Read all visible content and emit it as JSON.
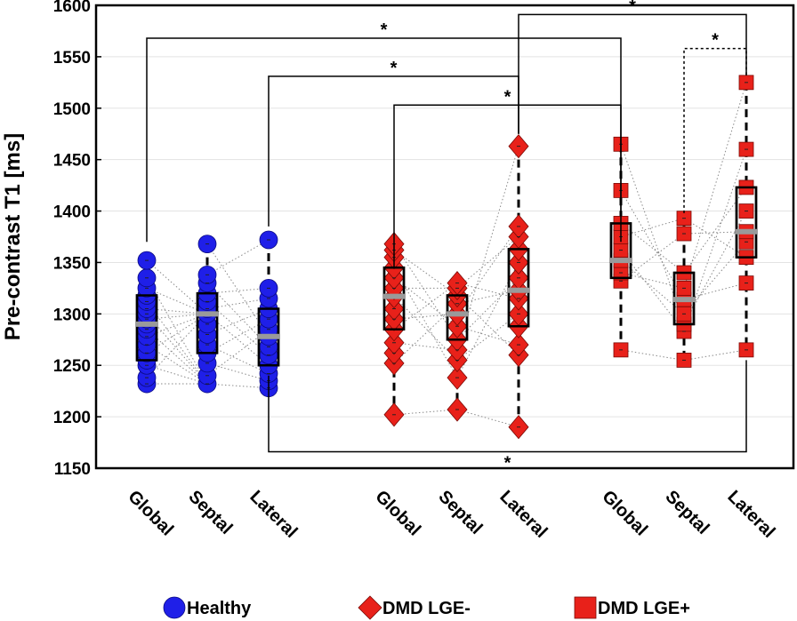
{
  "chart_data": {
    "type": "box-scatter",
    "ylabel": "Pre-contrast T1 [ms]",
    "ylim": [
      1150,
      1600
    ],
    "yticks": [
      1150,
      1200,
      1250,
      1300,
      1350,
      1400,
      1450,
      1500,
      1550,
      1600
    ],
    "grid": "horizontal",
    "colors": {
      "healthy": "#1f1fe8",
      "dmd": "#e8211a",
      "median": "#9a9a9a"
    },
    "groups": [
      {
        "name": "Healthy",
        "marker": "circle",
        "color": "#1f1fe8",
        "regions": [
          {
            "label": "Global",
            "q1": 1255,
            "median": 1290,
            "q3": 1318,
            "whisker_low": 1232,
            "whisker_high": 1352,
            "values": [
              1232,
              1238,
              1250,
              1255,
              1262,
              1270,
              1278,
              1285,
              1290,
              1295,
              1300,
              1305,
              1312,
              1318,
              1325,
              1335,
              1352
            ]
          },
          {
            "label": "Septal",
            "q1": 1262,
            "median": 1300,
            "q3": 1320,
            "whisker_low": 1232,
            "whisker_high": 1368,
            "values": [
              1232,
              1240,
              1252,
              1262,
              1270,
              1280,
              1290,
              1300,
              1305,
              1312,
              1320,
              1330,
              1338,
              1368
            ]
          },
          {
            "label": "Lateral",
            "q1": 1250,
            "median": 1278,
            "q3": 1305,
            "whisker_low": 1228,
            "whisker_high": 1372,
            "values": [
              1228,
              1235,
              1242,
              1250,
              1260,
              1268,
              1278,
              1285,
              1295,
              1305,
              1315,
              1325,
              1372
            ]
          }
        ]
      },
      {
        "name": "DMD LGE-",
        "marker": "diamond",
        "color": "#e8211a",
        "regions": [
          {
            "label": "Global",
            "q1": 1285,
            "median": 1317,
            "q3": 1345,
            "whisker_low": 1202,
            "whisker_high": 1368,
            "values": [
              1202,
              1252,
              1262,
              1272,
              1285,
              1295,
              1305,
              1317,
              1325,
              1335,
              1345,
              1355,
              1362,
              1368
            ]
          },
          {
            "label": "Septal",
            "q1": 1275,
            "median": 1300,
            "q3": 1318,
            "whisker_low": 1207,
            "whisker_high": 1330,
            "values": [
              1207,
              1238,
              1255,
              1265,
              1275,
              1288,
              1300,
              1310,
              1318,
              1325,
              1330
            ]
          },
          {
            "label": "Lateral",
            "q1": 1288,
            "median": 1323,
            "q3": 1363,
            "whisker_low": 1190,
            "whisker_high": 1463,
            "values": [
              1190,
              1260,
              1270,
              1288,
              1300,
              1315,
              1323,
              1335,
              1350,
              1363,
              1375,
              1385,
              1463
            ]
          }
        ]
      },
      {
        "name": "DMD LGE+",
        "marker": "square",
        "color": "#e8211a",
        "regions": [
          {
            "label": "Global",
            "q1": 1335,
            "median": 1352,
            "q3": 1388,
            "whisker_low": 1265,
            "whisker_high": 1465,
            "values": [
              1265,
              1332,
              1340,
              1352,
              1362,
              1375,
              1388,
              1420,
              1465
            ]
          },
          {
            "label": "Septal",
            "q1": 1290,
            "median": 1314,
            "q3": 1340,
            "whisker_low": 1255,
            "whisker_high": 1393,
            "values": [
              1255,
              1283,
              1290,
              1300,
              1314,
              1325,
              1340,
              1378,
              1393
            ]
          },
          {
            "label": "Lateral",
            "q1": 1355,
            "median": 1380,
            "q3": 1423,
            "whisker_low": 1265,
            "whisker_high": 1525,
            "values": [
              1265,
              1330,
              1355,
              1370,
              1380,
              1400,
              1423,
              1460,
              1525
            ]
          }
        ]
      }
    ],
    "significance": [
      {
        "label": "*",
        "from": "Healthy Global",
        "to": "DMD LGE+ Global",
        "y": 1568,
        "style": "solid",
        "position": "top"
      },
      {
        "label": "*",
        "from": "Healthy Lateral",
        "to": "DMD LGE- Lateral",
        "y": 1531,
        "style": "solid",
        "position": "top"
      },
      {
        "label": "*",
        "from": "DMD LGE- Global",
        "to": "DMD LGE+ Global",
        "y": 1503,
        "style": "solid",
        "position": "top"
      },
      {
        "label": "*",
        "from": "DMD LGE- Lateral",
        "to": "DMD LGE+ Lateral",
        "y": 1591,
        "style": "solid",
        "position": "top"
      },
      {
        "label": "*",
        "from": "DMD LGE+ Septal",
        "to": "DMD LGE+ Lateral",
        "y": 1558,
        "style": "dotted",
        "position": "top"
      },
      {
        "label": "*",
        "from": "Healthy Lateral",
        "to": "DMD LGE+ Lateral",
        "y": 1166,
        "style": "solid",
        "position": "bottom"
      }
    ],
    "legend": [
      {
        "label": "Healthy",
        "marker": "circle",
        "color": "#1f1fe8"
      },
      {
        "label": "DMD LGE-",
        "marker": "diamond",
        "color": "#e8211a"
      },
      {
        "label": "DMD LGE+",
        "marker": "square",
        "color": "#e8211a"
      }
    ],
    "legend_position": "bottom"
  }
}
